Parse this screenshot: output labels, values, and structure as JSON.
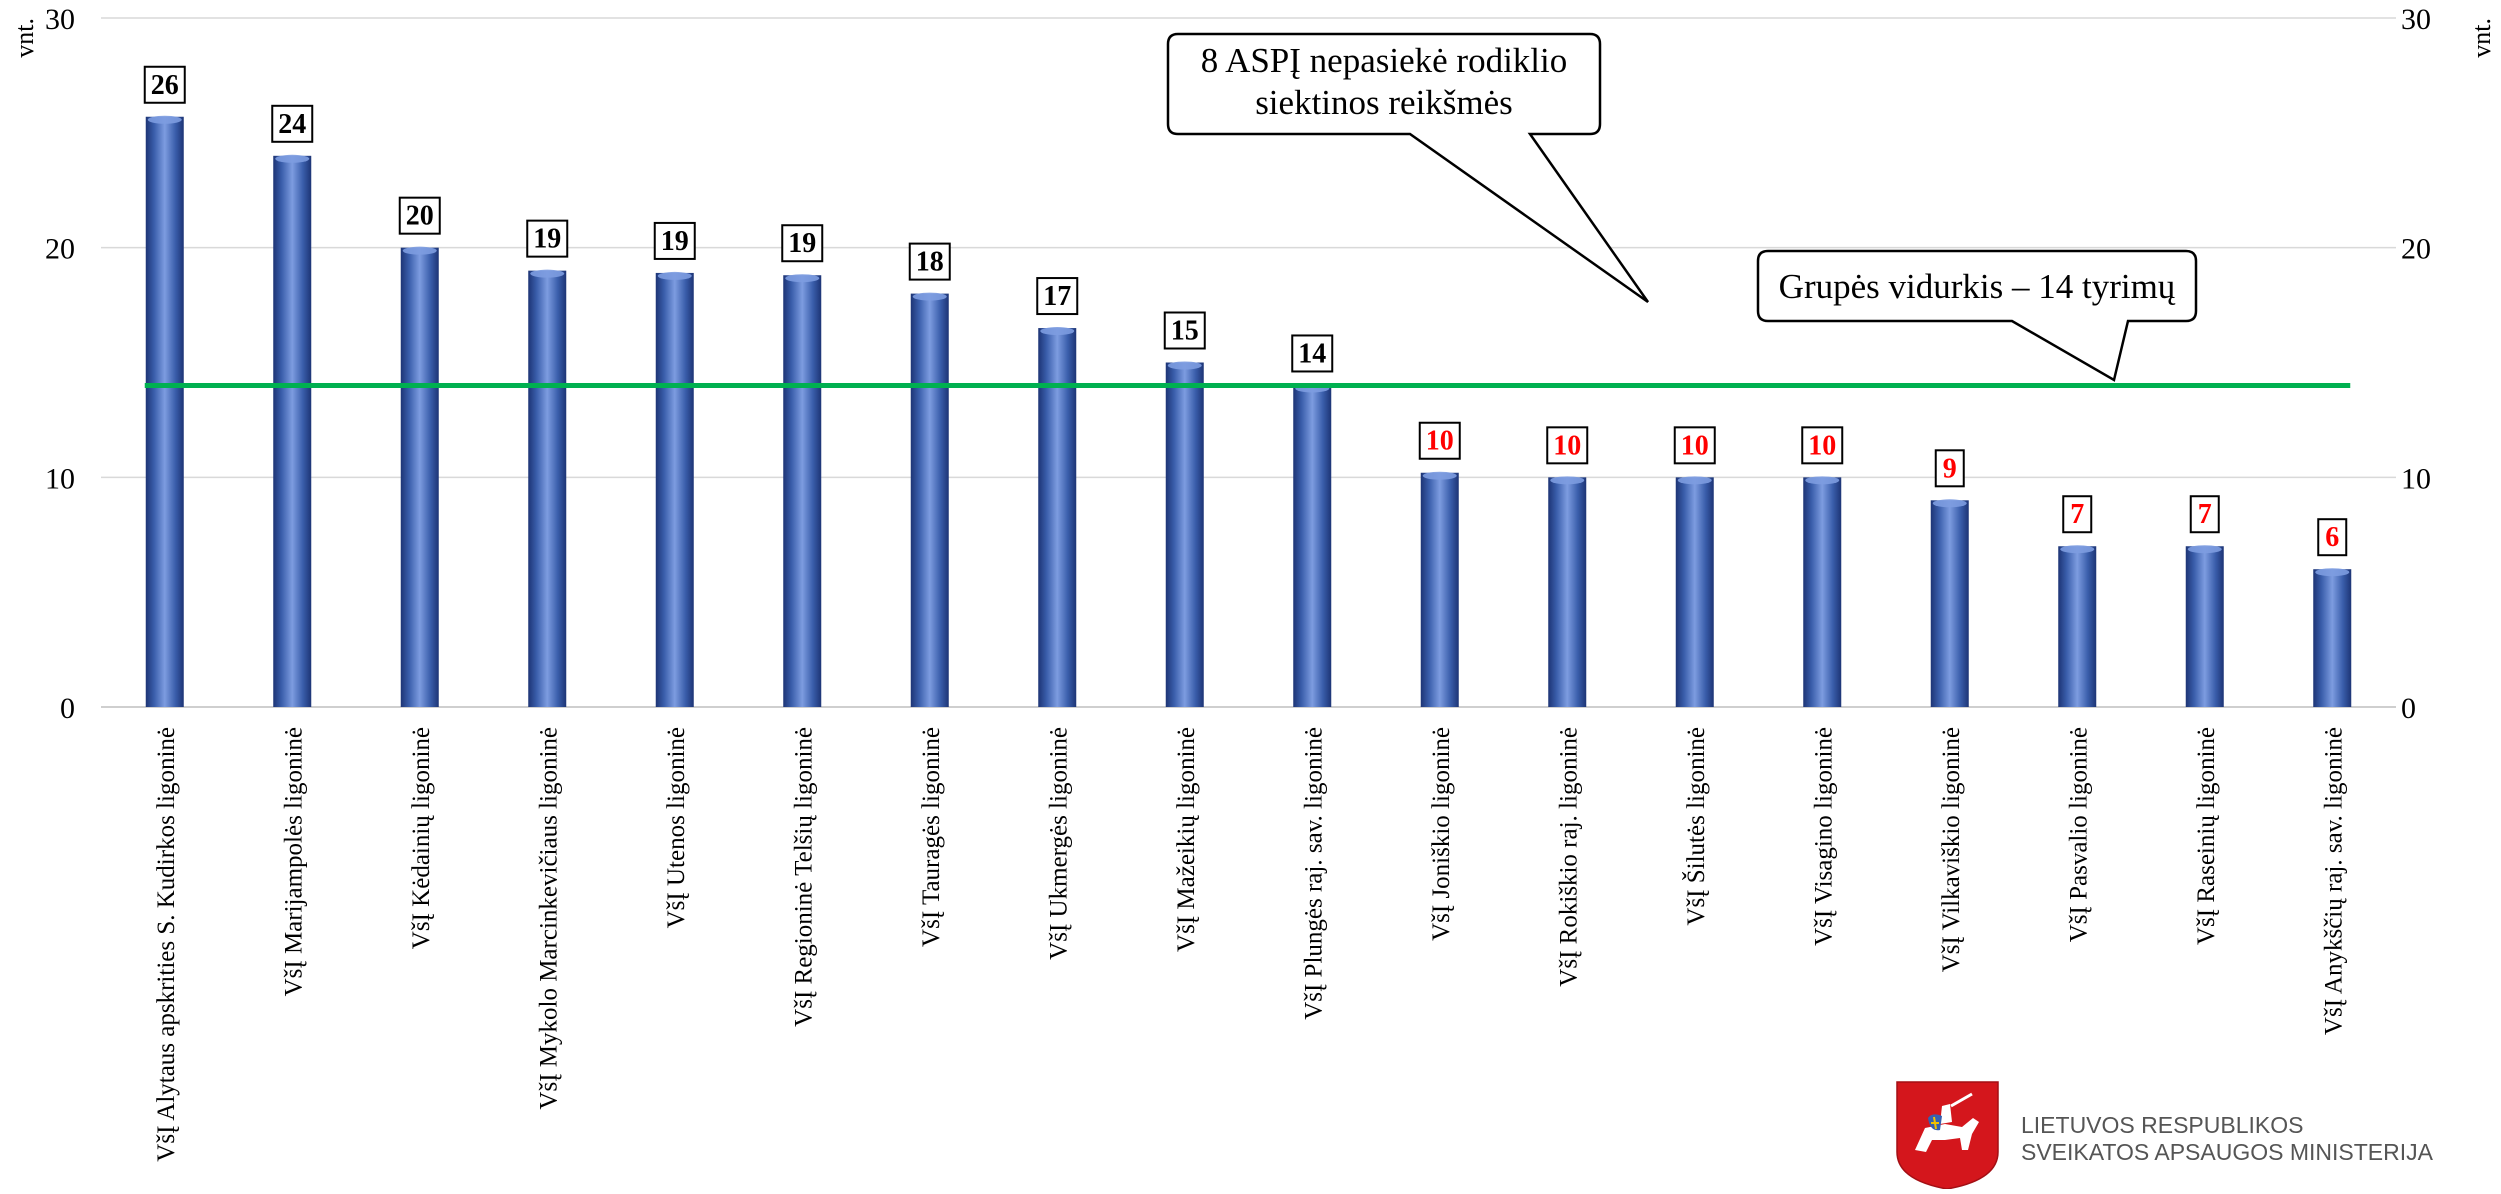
{
  "chart_data": {
    "type": "bar",
    "title": "",
    "ylabel_left": "vnt.",
    "ylabel_right": "vnt.",
    "ylim": [
      0,
      30
    ],
    "yticks": [
      0,
      10,
      20,
      30
    ],
    "grid": true,
    "categories": [
      "VšĮ Alytaus apskrities S. Kudirkos ligoninė",
      "VšĮ Marijampolės ligoninė",
      "VšĮ Kėdainių ligoninė",
      "VšĮ Mykolo Marcinkevičiaus ligoninė",
      "VšĮ Utenos ligoninė",
      "VšĮ Regioninė Telšių ligoninė",
      "VšĮ Tauragės ligoninė",
      "VšĮ Ukmergės ligoninė",
      "VšĮ Mažeikių ligoninė",
      "VšĮ Plungės raj. sav. ligoninė",
      "VšĮ Joniškio ligoninė",
      "VšĮ Rokiškio raj. ligoninė",
      "VšĮ Šilutės ligoninė",
      "VšĮ Visagino ligoninė",
      "VšĮ Vilkaviškio ligoninė",
      "VšĮ Pasvalio ligoninė",
      "VšĮ Raseinių ligoninė",
      "VšĮ Anykščių raj. sav. ligoninė"
    ],
    "values": [
      25.7,
      24,
      20,
      19,
      18.9,
      18.8,
      18,
      16.5,
      15,
      14,
      10.2,
      10,
      10,
      10,
      9,
      7,
      7,
      6
    ],
    "data_labels": [
      "26",
      "24",
      "20",
      "19",
      "19",
      "19",
      "18",
      "17",
      "15",
      "14",
      "10",
      "10",
      "10",
      "10",
      "9",
      "7",
      "7",
      "6"
    ],
    "label_below_target": [
      false,
      false,
      false,
      false,
      false,
      false,
      false,
      false,
      false,
      false,
      true,
      true,
      true,
      true,
      true,
      true,
      true,
      true
    ],
    "average_line": {
      "value": 14
    },
    "annotations": [
      "8 ASPĮ nepasiekė rodiklio siektinos reikšmės",
      "Grupės vidurkis – 14 tyrimų"
    ],
    "colors": {
      "bar": "#3a5eab",
      "bar_light": "#7d9ce0",
      "bar_dark": "#1d3475",
      "average_line": "#00b050",
      "label_below_target": "#ff0000",
      "label_normal": "#000000",
      "grid": "#d9d9d9"
    }
  },
  "logo": {
    "line1": "LIETUVOS RESPUBLIKOS",
    "line2": "SVEIKATOS APSAUGOS MINISTERIJA",
    "emblem": "vytis-coat-of-arms"
  }
}
